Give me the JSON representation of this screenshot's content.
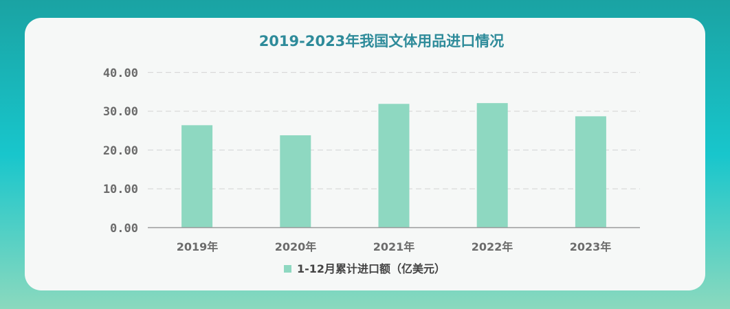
{
  "chart_data": {
    "type": "bar",
    "title": "2019-2023年我国文体用品进口情况",
    "categories": [
      "2019年",
      "2020年",
      "2021年",
      "2022年",
      "2023年"
    ],
    "series": [
      {
        "name": "1-12月累计进口额（亿美元）",
        "values": [
          26.4,
          23.8,
          31.9,
          32.1,
          28.7
        ],
        "color": "#8ed8c1"
      }
    ],
    "yticks": [
      "0.00",
      "10.00",
      "20.00",
      "30.00",
      "40.00"
    ],
    "ylim": [
      0,
      40
    ],
    "grid": true,
    "legend_position": "bottom"
  },
  "colors": {
    "title": "#2e8b9a",
    "bar": "#8ed8c1",
    "gridline": "#d9d9d9",
    "axis": "#9a9a9a",
    "label": "#6b6b6b"
  }
}
